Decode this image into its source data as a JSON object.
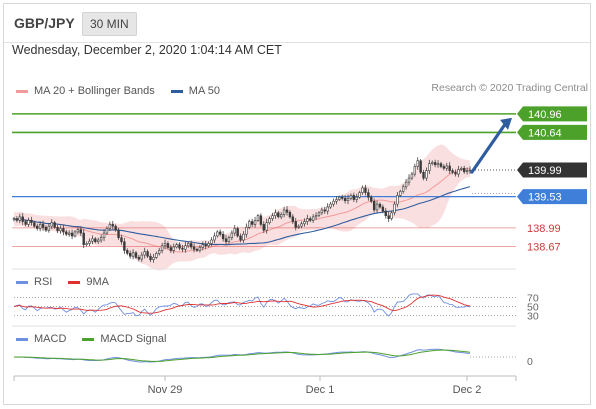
{
  "header": {
    "symbol": "GBP/JPY",
    "timeframe": "30 MIN",
    "datetime": "Wednesday, December 2, 2020 1:04:14 AM CET",
    "copyright": "Research © 2020 Trading Central"
  },
  "colors": {
    "resistance": "#4ca12a",
    "pivot": "#3f7fd9",
    "support": "#e35f5f",
    "bollinger_fill": "#f7d2d2",
    "ma50": "#2e5c9e",
    "arrow": "#2e5c9e",
    "last_price_bg": "#333333",
    "rsi": "#6f8fe0",
    "rsi_ma": "#e03030",
    "macd": "#6f8fe0",
    "macd_signal": "#4ca12a"
  },
  "chart_data": [
    {
      "type": "candlestick",
      "legend": [
        {
          "name": "MA 20 + Bollinger Bands",
          "color": "#f39a9a"
        },
        {
          "name": "MA 50",
          "color": "#2e5c9e"
        }
      ],
      "x_ticks": [
        "Nov 29",
        "Dec 1",
        "Dec 2"
      ],
      "ylim": [
        138.4,
        141.2
      ],
      "last_price": 139.99,
      "levels": [
        {
          "value": 140.96,
          "label": "140.96",
          "kind": "resistance"
        },
        {
          "value": 140.64,
          "label": "140.64",
          "kind": "resistance"
        },
        {
          "value": 139.53,
          "label": "139.53",
          "kind": "pivot"
        },
        {
          "value": 138.99,
          "label": "138.99",
          "kind": "support"
        },
        {
          "value": 138.67,
          "label": "138.67",
          "kind": "support"
        }
      ],
      "close": [
        139.15,
        139.12,
        139.18,
        139.1,
        139.05,
        139.12,
        139.08,
        139.02,
        138.98,
        139.05,
        139.0,
        138.95,
        139.02,
        139.08,
        139.0,
        138.94,
        138.98,
        138.92,
        138.88,
        138.9,
        138.85,
        138.92,
        138.96,
        138.9,
        138.7,
        138.72,
        138.76,
        138.8,
        138.75,
        138.78,
        138.82,
        138.9,
        138.98,
        139.05,
        139.02,
        138.95,
        138.82,
        138.75,
        138.6,
        138.55,
        138.5,
        138.56,
        138.48,
        138.45,
        138.52,
        138.58,
        138.5,
        138.44,
        138.48,
        138.55,
        138.6,
        138.68,
        138.72,
        138.65,
        138.6,
        138.66,
        138.7,
        138.64,
        138.62,
        138.68,
        138.72,
        138.66,
        138.62,
        138.6,
        138.65,
        138.7,
        138.68,
        138.72,
        138.78,
        138.85,
        138.92,
        138.88,
        138.8,
        138.75,
        138.82,
        138.9,
        138.98,
        138.85,
        138.78,
        138.88,
        139.0,
        139.1,
        139.05,
        139.12,
        139.2,
        139.05,
        138.95,
        139.08,
        139.15,
        139.2,
        139.25,
        139.18,
        139.22,
        139.3,
        139.26,
        139.18,
        139.1,
        139.0,
        139.02,
        139.06,
        139.1,
        139.15,
        139.12,
        139.18,
        139.2,
        139.25,
        139.3,
        139.28,
        139.35,
        139.4,
        139.45,
        139.48,
        139.52,
        139.5,
        139.46,
        139.5,
        139.55,
        139.48,
        139.52,
        139.6,
        139.68,
        139.6,
        139.52,
        139.45,
        139.3,
        139.4,
        139.35,
        139.28,
        139.2,
        139.15,
        139.25,
        139.4,
        139.55,
        139.62,
        139.7,
        139.78,
        139.85,
        139.92,
        140.05,
        140.15,
        139.95,
        139.85,
        139.98,
        140.1,
        140.12,
        140.08,
        140.1,
        140.05,
        140.02,
        140.06,
        139.98,
        139.95,
        139.92,
        140.0,
        140.02,
        139.96,
        139.98,
        139.99
      ],
      "overlays": [
        "MA 20",
        "Bollinger Bands",
        "MA 50"
      ]
    },
    {
      "type": "line",
      "legend": [
        {
          "name": "RSI",
          "color": "#6f8fe0"
        },
        {
          "name": "9MA",
          "color": "#e03030"
        }
      ],
      "y_ticks": [
        "70",
        "50",
        "30"
      ],
      "ylim": [
        20,
        80
      ]
    },
    {
      "type": "line",
      "legend": [
        {
          "name": "MACD",
          "color": "#6f8fe0"
        },
        {
          "name": "MACD Signal",
          "color": "#4ca12a"
        }
      ],
      "y_ticks": [
        "0"
      ]
    }
  ]
}
